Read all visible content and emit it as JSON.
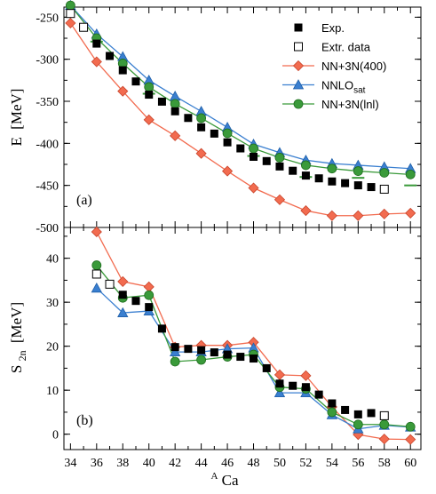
{
  "colors": {
    "exp": "#000000",
    "nn3n400": "#f26b4f",
    "nnlosat": "#3a7fd0",
    "nn3nlnl": "#3a9a3a"
  },
  "chart_data": [
    {
      "type": "scatter",
      "panel_label": "(a)",
      "ylabel_main": "E",
      "ylabel_unit": "[MeV]",
      "xlim": [
        33.5,
        60.8
      ],
      "ylim": [
        -500,
        -238
      ],
      "yticks": [
        -500,
        -450,
        -400,
        -350,
        -300,
        -250
      ],
      "ytick_labels": [
        "-500",
        "-450",
        "-400",
        "-350",
        "-300",
        "-250"
      ],
      "legend": {
        "placement": "top-right",
        "entries": [
          "Exp.",
          "Extr. data",
          "NN+3N(400)",
          "NNLO",
          "NN+3N(lnl)"
        ],
        "nnlo_subscript": "sat"
      },
      "series": [
        {
          "name": "Exp.",
          "marker": "filled-square",
          "x": [
            36,
            37,
            38,
            39,
            40,
            41,
            42,
            43,
            44,
            45,
            46,
            47,
            48,
            49,
            50,
            51,
            52,
            53,
            54,
            55,
            56,
            57
          ],
          "y": [
            -281.4,
            -296.1,
            -313.1,
            -326.4,
            -342.1,
            -350.4,
            -361.9,
            -369.8,
            -380.9,
            -388.4,
            -398.8,
            -406.0,
            -416.0,
            -421.1,
            -427.5,
            -432.6,
            -438.3,
            -441.6,
            -445.3,
            -447.3,
            -449.9,
            -452.0
          ]
        },
        {
          "name": "Extr. data",
          "marker": "open-square",
          "x": [
            34,
            35,
            58
          ],
          "y": [
            -245.6,
            -262.0,
            -454.5
          ]
        },
        {
          "name": "NN+3N(400)",
          "marker": "diamond",
          "x": [
            34,
            36,
            38,
            40,
            42,
            44,
            46,
            48,
            50,
            52,
            54,
            56,
            58,
            60
          ],
          "y": [
            -257,
            -303,
            -338,
            -372,
            -391,
            -412,
            -433,
            -453,
            -467,
            -480,
            -486,
            -486,
            -484,
            -483
          ]
        },
        {
          "name": "NNLO_sat",
          "marker": "triangle",
          "x": [
            34,
            36,
            38,
            40,
            42,
            44,
            46,
            48,
            50,
            52,
            54,
            56,
            58,
            60
          ],
          "y": [
            -236,
            -270,
            -297,
            -325,
            -344,
            -362,
            -381,
            -401,
            -411,
            -420,
            -424,
            -426,
            -428,
            -430
          ]
        },
        {
          "name": "NN+3N(lnl)",
          "marker": "circle",
          "x": [
            34,
            36,
            38,
            40,
            42,
            44,
            46,
            48,
            50,
            52,
            54,
            56,
            58,
            60
          ],
          "y": [
            -236,
            -275,
            -305,
            -333,
            -353,
            -370,
            -388,
            -406,
            -417,
            -426,
            -430,
            -433,
            -435,
            -437
          ]
        },
        {
          "name": "",
          "marker": "dash",
          "x": [
            36,
            40,
            48,
            52,
            56,
            60
          ],
          "y": [
            -279,
            -341,
            -415,
            -440,
            -441,
            -450
          ]
        }
      ]
    },
    {
      "type": "line",
      "panel_label": "(b)",
      "ylabel_main": "S",
      "ylabel_sub": "2n",
      "ylabel_unit": "[MeV]",
      "xlabel_sup": "A",
      "xlabel_main": "Ca",
      "xlim": [
        33.5,
        60.8
      ],
      "ylim": [
        -3.5,
        47
      ],
      "xticks": [
        34,
        36,
        38,
        40,
        42,
        44,
        46,
        48,
        50,
        52,
        54,
        56,
        58,
        60
      ],
      "xtick_labels": [
        "34",
        "36",
        "38",
        "40",
        "42",
        "44",
        "46",
        "48",
        "50",
        "52",
        "54",
        "56",
        "58",
        "60"
      ],
      "yticks": [
        0,
        10,
        20,
        30,
        40
      ],
      "ytick_labels": [
        "0",
        "10",
        "20",
        "30",
        "40"
      ],
      "series": [
        {
          "name": "Exp.",
          "marker": "filled-square",
          "x": [
            38,
            39,
            40,
            41,
            42,
            43,
            44,
            45,
            46,
            47,
            48,
            49,
            50,
            51,
            52,
            53,
            54,
            55,
            56,
            57
          ],
          "y": [
            31.7,
            30.3,
            28.9,
            24.0,
            19.8,
            19.4,
            19.1,
            18.6,
            18.1,
            17.6,
            17.2,
            15.0,
            11.5,
            11.0,
            10.7,
            9.0,
            7.0,
            5.5,
            4.5,
            4.8
          ]
        },
        {
          "name": "Extr. data",
          "marker": "open-square",
          "x": [
            36,
            37,
            58
          ],
          "y": [
            36.4,
            34.1,
            4.2
          ]
        },
        {
          "name": "NN+3N(400)",
          "marker": "diamond",
          "x": [
            36,
            38,
            40,
            42,
            44,
            46,
            48,
            50,
            52,
            54,
            56,
            58,
            60
          ],
          "y": [
            46.0,
            34.7,
            33.5,
            19.8,
            20.2,
            20.2,
            20.9,
            13.5,
            13.3,
            6.2,
            -0.1,
            -1.1,
            -1.2
          ]
        },
        {
          "name": "NNLO_sat",
          "marker": "triangle",
          "x": [
            36,
            38,
            40,
            42,
            44,
            46,
            48,
            50,
            52,
            54,
            56,
            58,
            60
          ],
          "y": [
            33.2,
            27.6,
            28.0,
            18.7,
            18.7,
            19.4,
            19.6,
            9.4,
            9.4,
            4.4,
            1.2,
            2.0,
            1.6
          ]
        },
        {
          "name": "NN+3N(lnl)",
          "marker": "circle",
          "x": [
            36,
            38,
            40,
            42,
            44,
            46,
            48,
            50,
            52,
            54,
            56,
            58,
            60
          ],
          "y": [
            38.4,
            31.0,
            31.6,
            16.5,
            16.9,
            17.6,
            18.1,
            10.7,
            10.3,
            5.0,
            2.2,
            2.2,
            1.7
          ]
        }
      ]
    }
  ]
}
